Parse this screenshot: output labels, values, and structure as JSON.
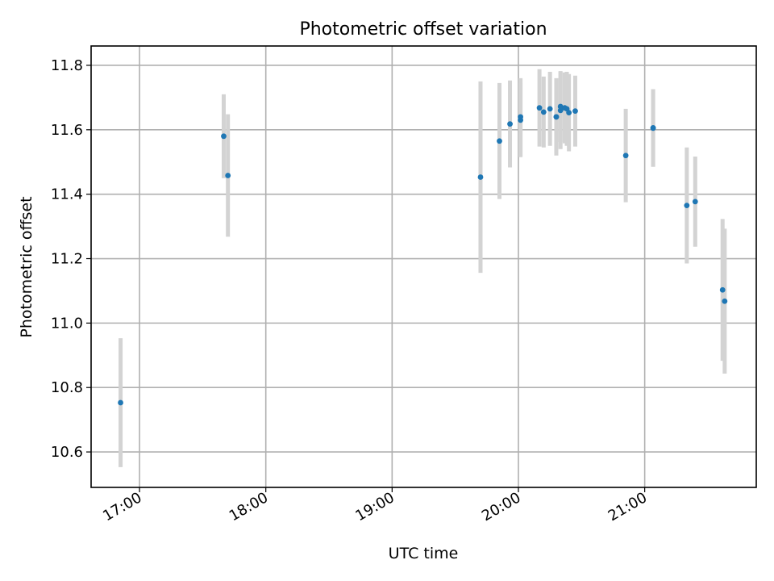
{
  "chart_data": {
    "type": "scatter",
    "title": "Photometric offset variation",
    "xlabel": "UTC time",
    "ylabel": "Photometric offset",
    "x_unit": "time (HH:MM UTC)",
    "xlim": [
      "16:37",
      "21:53"
    ],
    "ylim": [
      10.49,
      11.86
    ],
    "xticks": [
      "17:00",
      "18:00",
      "19:00",
      "20:00",
      "21:00"
    ],
    "yticks": [
      10.6,
      10.8,
      11.0,
      11.2,
      11.4,
      11.6,
      11.8
    ],
    "grid": true,
    "legend": "none",
    "point_color": "#1f77b4",
    "errorbar_color": "#d3d3d3",
    "points": [
      {
        "time": "16:51",
        "y": 10.753,
        "err": 0.2
      },
      {
        "time": "17:40",
        "y": 11.58,
        "err": 0.13
      },
      {
        "time": "17:42",
        "y": 11.458,
        "err": 0.19
      },
      {
        "time": "19:42",
        "y": 11.453,
        "err": 0.297
      },
      {
        "time": "19:51",
        "y": 11.565,
        "err": 0.18
      },
      {
        "time": "19:56",
        "y": 11.618,
        "err": 0.135
      },
      {
        "time": "20:01",
        "y": 11.63,
        "err": 0.115
      },
      {
        "time": "20:01",
        "y": 11.64,
        "err": 0.12
      },
      {
        "time": "20:10",
        "y": 11.668,
        "err": 0.12
      },
      {
        "time": "20:12",
        "y": 11.655,
        "err": 0.11
      },
      {
        "time": "20:15",
        "y": 11.665,
        "err": 0.115
      },
      {
        "time": "20:18",
        "y": 11.64,
        "err": 0.12
      },
      {
        "time": "20:18",
        "y": 11.64,
        "err": 0.115
      },
      {
        "time": "20:20",
        "y": 11.66,
        "err": 0.12
      },
      {
        "time": "20:20",
        "y": 11.672,
        "err": 0.11
      },
      {
        "time": "20:22",
        "y": 11.668,
        "err": 0.11
      },
      {
        "time": "20:23",
        "y": 11.665,
        "err": 0.115
      },
      {
        "time": "20:24",
        "y": 11.653,
        "err": 0.12
      },
      {
        "time": "20:27",
        "y": 11.658,
        "err": 0.11
      },
      {
        "time": "20:51",
        "y": 11.52,
        "err": 0.145
      },
      {
        "time": "21:04",
        "y": 11.606,
        "err": 0.12
      },
      {
        "time": "21:04",
        "y": 11.605,
        "err": 0.12
      },
      {
        "time": "21:20",
        "y": 11.365,
        "err": 0.18
      },
      {
        "time": "21:24",
        "y": 11.377,
        "err": 0.14
      },
      {
        "time": "21:37",
        "y": 11.103,
        "err": 0.22
      },
      {
        "time": "21:38",
        "y": 11.068,
        "err": 0.225
      }
    ]
  }
}
